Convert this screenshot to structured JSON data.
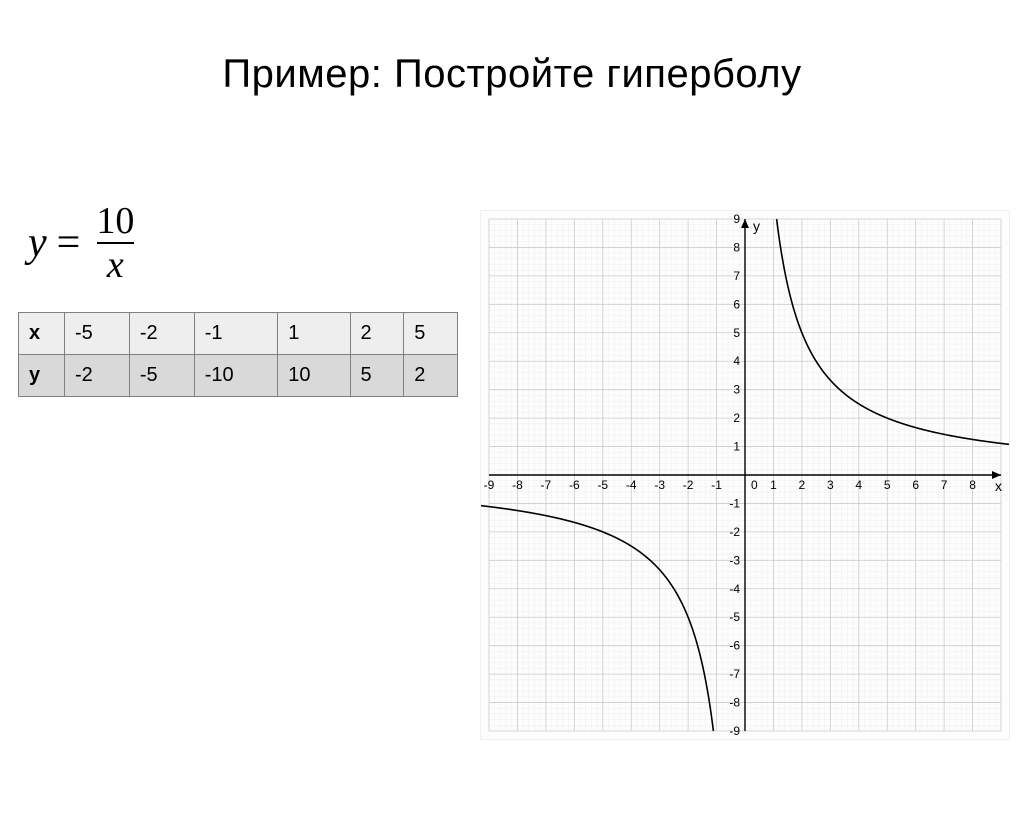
{
  "title": "Пример: Постройте гиперболу",
  "formula": {
    "lhs": "y",
    "eq": "=",
    "numerator": "10",
    "denominator": "x"
  },
  "table": {
    "header_label": "x",
    "row_label": "y",
    "x_values": [
      "-5",
      "-2",
      "-1",
      "1",
      "2",
      "5"
    ],
    "y_values": [
      "-2",
      "-5",
      "-10",
      "10",
      "5",
      "2"
    ]
  },
  "chart": {
    "type": "line",
    "xlim": [
      -9,
      9
    ],
    "ylim": [
      -9,
      9
    ],
    "tick_step": 1,
    "x_axis_label": "x",
    "y_axis_label": "y",
    "background_color": "#fdfdfd",
    "grid_major_color": "#cccccc",
    "grid_minor_color": "#eeeeee",
    "axis_color": "#000000",
    "curve_color": "#000000",
    "curve_width": 1.6,
    "tick_fontsize": 12,
    "axis_label_fontsize": 14,
    "minor_divisions": 5,
    "function_k": 10,
    "grid_on": true
  }
}
